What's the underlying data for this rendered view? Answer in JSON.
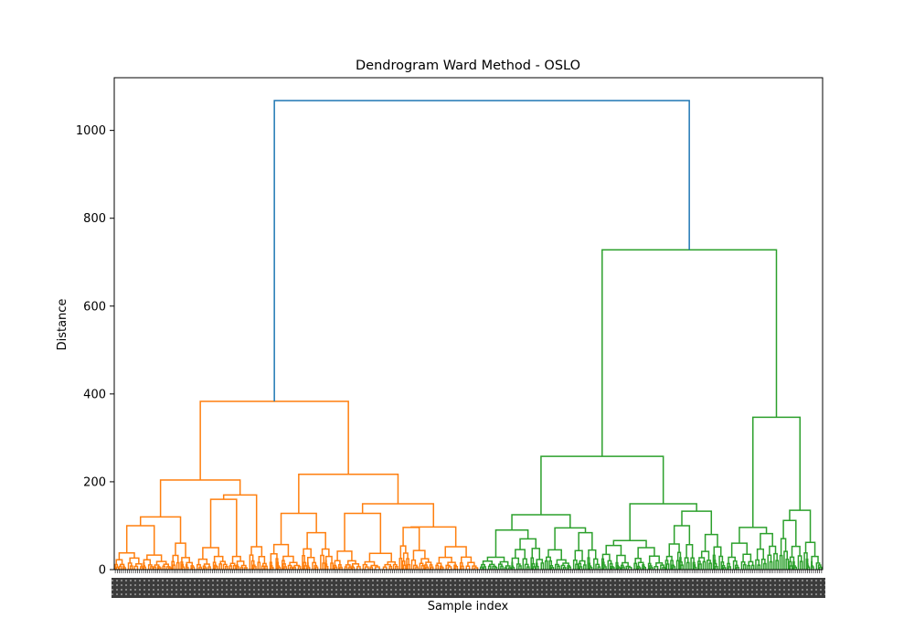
{
  "chart_data": {
    "type": "dendrogram",
    "title": "Dendrogram Ward Method - OSLO",
    "xlabel": "Sample index",
    "ylabel": "Distance",
    "ylim": [
      0,
      1120
    ],
    "yticks": [
      0,
      200,
      400,
      600,
      800,
      1000
    ],
    "grid": false,
    "legend": "none",
    "colors": {
      "root": "#1f77b4",
      "cluster_1": "#ff7f0e",
      "cluster_2": "#2ca02c",
      "axis": "#000000"
    },
    "leaf_count": 350,
    "clusters": [
      {
        "name": "cluster_1",
        "leaf_span": [
          0,
          180
        ],
        "merges": [
          {
            "children_leaf_centers": [
              37,
              144
            ],
            "height": 383
          },
          {
            "children_leaf_centers": [
              18,
              57
            ],
            "height": 204
          },
          {
            "children_leaf_centers": [
              87,
              154
            ],
            "height": 217
          },
          {
            "children_leaf_centers": [
              114,
              185
            ],
            "height": 128
          },
          {
            "children_leaf_centers": [
              7,
              30
            ],
            "height": 100
          },
          {
            "children_leaf_centers": [
              48,
              66
            ],
            "height": 160
          },
          {
            "children_leaf_centers": [
              100,
              128
            ],
            "height": 85
          },
          {
            "children_leaf_centers": [
              158,
              178
            ],
            "height": 97
          }
        ]
      },
      {
        "name": "cluster_2",
        "leaf_span": [
          180,
          350
        ],
        "merges": [
          {
            "children_leaf_centers": [
              263,
              321
            ],
            "height": 728
          },
          {
            "children_leaf_centers": [
              222,
              285
            ],
            "height": 258
          },
          {
            "children_leaf_centers": [
              311,
              331
            ],
            "height": 347
          },
          {
            "children_leaf_centers": [
              203,
              242
            ],
            "height": 125
          },
          {
            "children_leaf_centers": [
              272,
              296
            ],
            "height": 133
          },
          {
            "children_leaf_centers": [
              323,
              340
            ],
            "height": 135
          }
        ]
      }
    ],
    "root": {
      "children_leaf_centers": [
        80,
        291
      ],
      "height": 1068
    }
  }
}
